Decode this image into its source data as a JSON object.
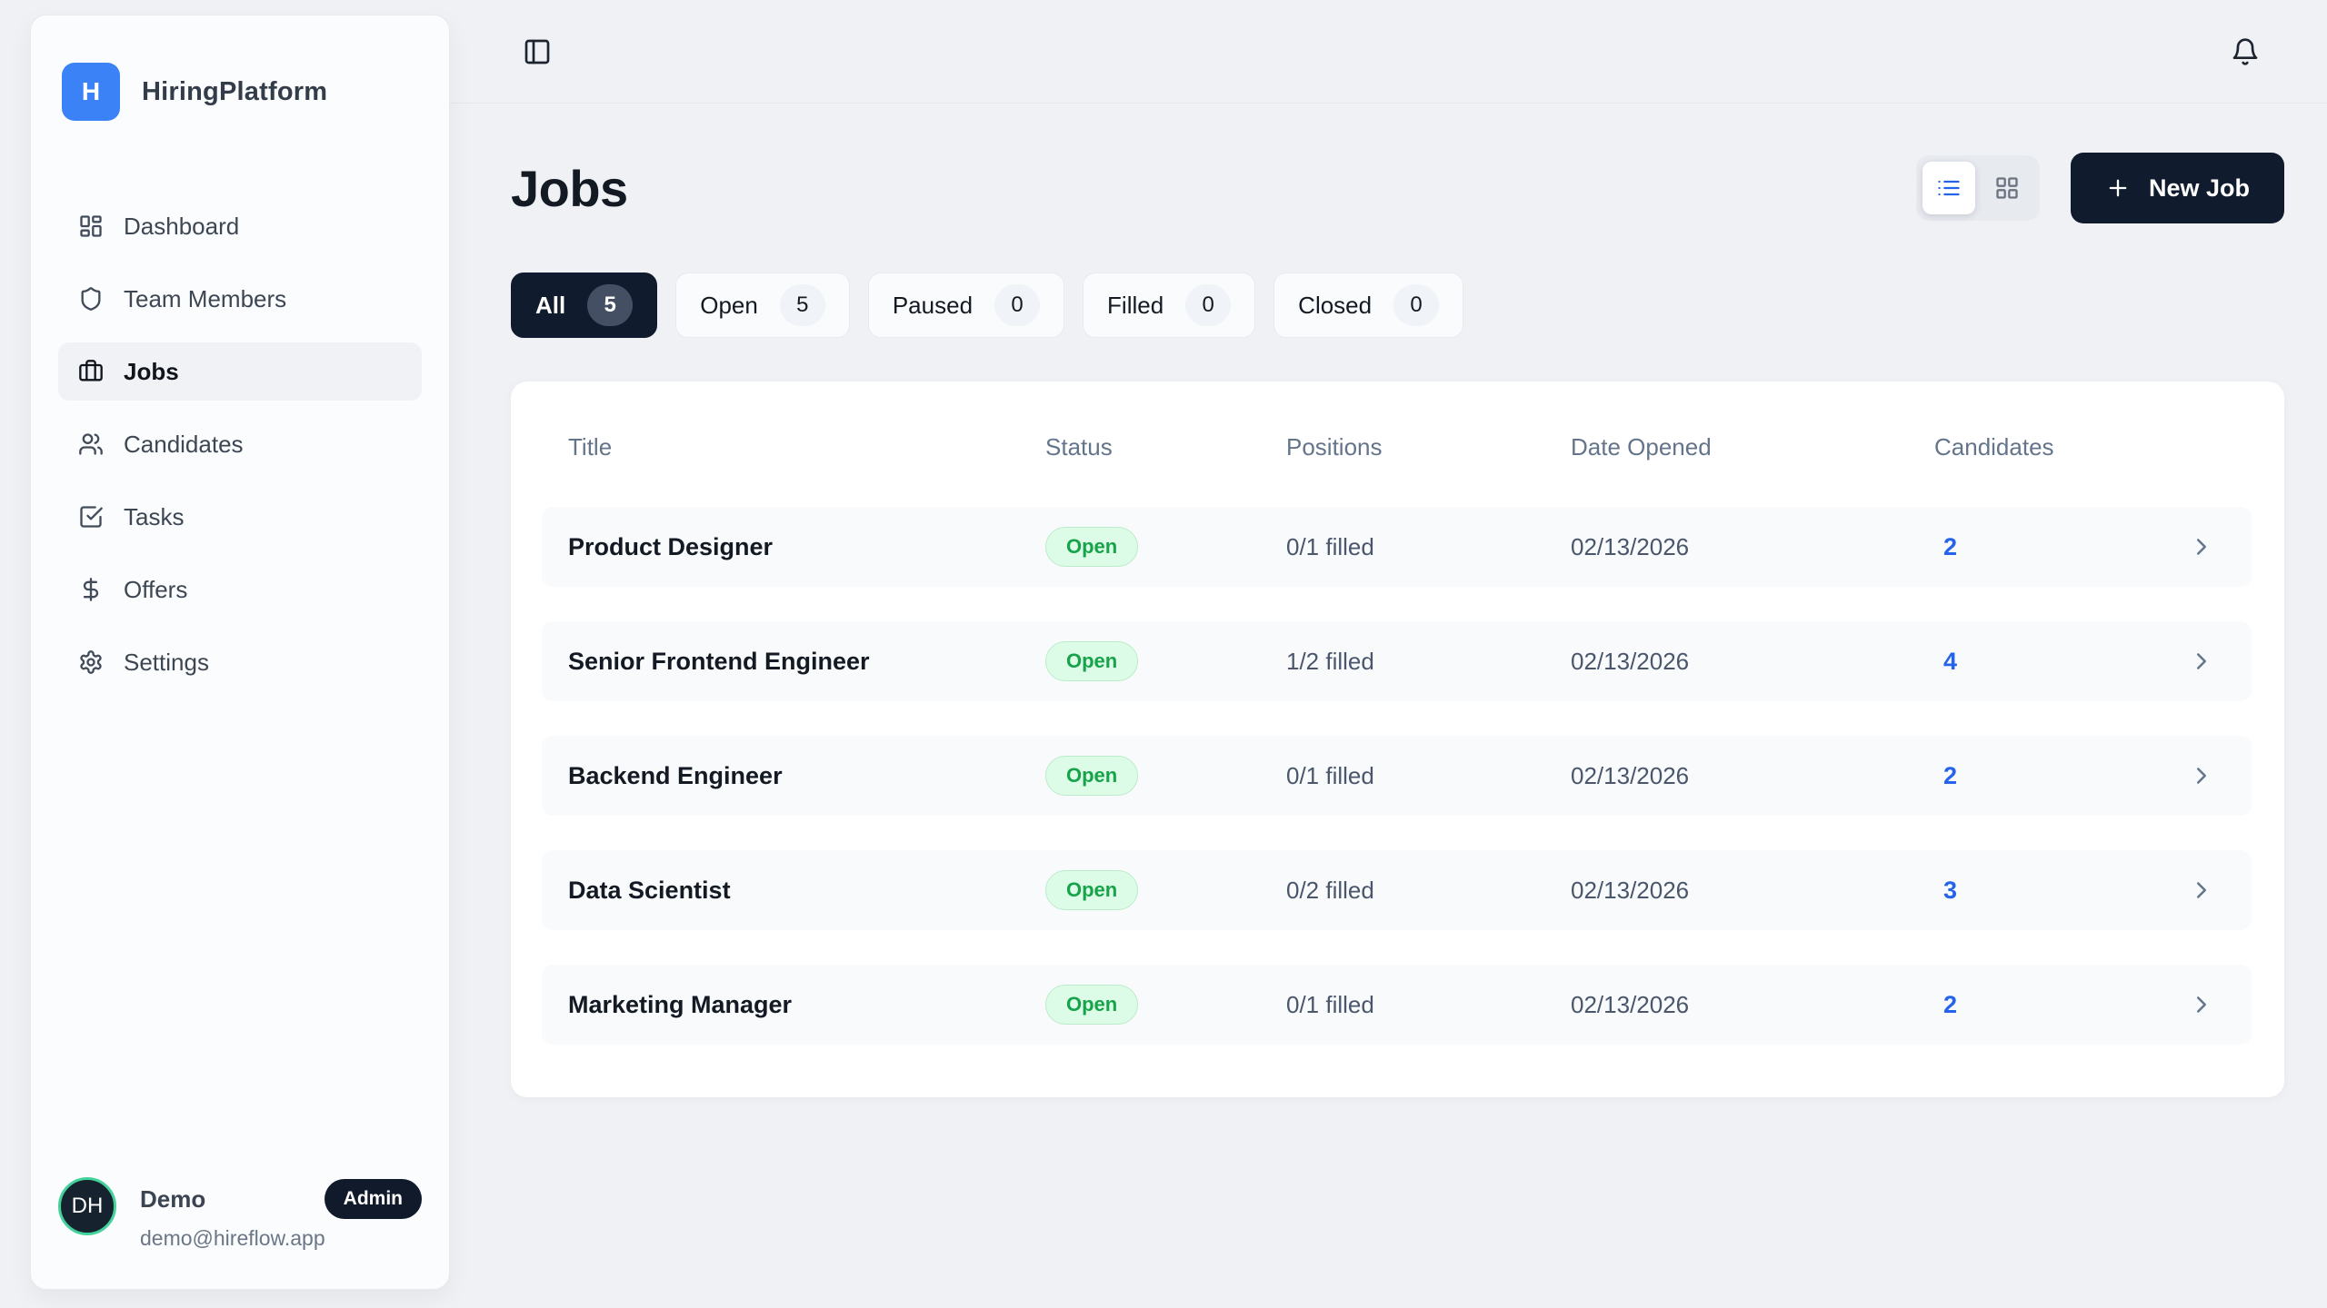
{
  "app": {
    "name": "HiringPlatform",
    "logo_letter": "H"
  },
  "colors": {
    "accent_blue": "#3b82f6",
    "link_blue": "#2563eb",
    "navy": "#101b2e",
    "page_background": "#eff1f4",
    "open_badge_bg": "#dcfce7",
    "open_badge_text": "#16a34a",
    "avatar_ring": "#43d39a",
    "muted_text": "#64748b"
  },
  "icons": {
    "toggle_sidebar": "panel-left",
    "notifications": "bell",
    "view_list": "list",
    "view_grid": "layout-grid",
    "new_job_plus": "plus",
    "row_chevron": "chevron-right"
  },
  "sidebar": {
    "items": [
      {
        "label": "Dashboard",
        "icon": "layout-dashboard",
        "active": false
      },
      {
        "label": "Team Members",
        "icon": "shield",
        "active": false
      },
      {
        "label": "Jobs",
        "icon": "briefcase",
        "active": true
      },
      {
        "label": "Candidates",
        "icon": "users",
        "active": false
      },
      {
        "label": "Tasks",
        "icon": "check-square",
        "active": false
      },
      {
        "label": "Offers",
        "icon": "dollar-sign",
        "active": false
      },
      {
        "label": "Settings",
        "icon": "settings",
        "active": false
      }
    ],
    "user": {
      "initials": "DH",
      "name": "Demo",
      "role_badge": "Admin",
      "email": "demo@hireflow.app"
    }
  },
  "page": {
    "title": "Jobs",
    "new_job_label": "New Job",
    "filters": [
      {
        "label": "All",
        "count": "5",
        "active": true
      },
      {
        "label": "Open",
        "count": "5",
        "active": false
      },
      {
        "label": "Paused",
        "count": "0",
        "active": false
      },
      {
        "label": "Filled",
        "count": "0",
        "active": false
      },
      {
        "label": "Closed",
        "count": "0",
        "active": false
      }
    ],
    "table": {
      "columns": [
        "Title",
        "Status",
        "Positions",
        "Date Opened",
        "Candidates"
      ],
      "rows": [
        {
          "title": "Product Designer",
          "status": "Open",
          "positions": "0/1 filled",
          "date": "02/13/2026",
          "candidates": "2"
        },
        {
          "title": "Senior Frontend Engineer",
          "status": "Open",
          "positions": "1/2 filled",
          "date": "02/13/2026",
          "candidates": "4"
        },
        {
          "title": "Backend Engineer",
          "status": "Open",
          "positions": "0/1 filled",
          "date": "02/13/2026",
          "candidates": "2"
        },
        {
          "title": "Data Scientist",
          "status": "Open",
          "positions": "0/2 filled",
          "date": "02/13/2026",
          "candidates": "3"
        },
        {
          "title": "Marketing Manager",
          "status": "Open",
          "positions": "0/1 filled",
          "date": "02/13/2026",
          "candidates": "2"
        }
      ]
    }
  }
}
